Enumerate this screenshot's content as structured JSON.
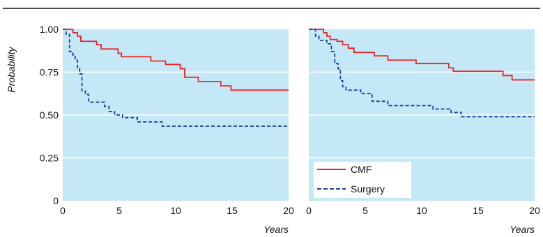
{
  "chart_data": [
    {
      "type": "line",
      "step": true,
      "ylabel": "Probability",
      "xlabel": "Years",
      "xlim": [
        0,
        20
      ],
      "ylim": [
        0,
        1
      ],
      "x_ticks": [
        0,
        5,
        10,
        15,
        20
      ],
      "y_ticks": [
        0,
        0.25,
        0.5,
        0.75,
        1
      ],
      "y_tick_labels": [
        "0",
        "0.25",
        "0.50",
        "0.75",
        "1.00"
      ],
      "x_tick_labels": [
        "0",
        "5",
        "10",
        "15",
        "20"
      ],
      "grid": "horizontal",
      "background": "#c5e8f6",
      "series": [
        {
          "name": "CMF",
          "color": "#e8262b",
          "style": "solid",
          "points": [
            [
              0,
              1.0
            ],
            [
              0.9,
              0.98
            ],
            [
              1.3,
              0.96
            ],
            [
              1.6,
              0.93
            ],
            [
              3.0,
              0.91
            ],
            [
              3.4,
              0.885
            ],
            [
              4.9,
              0.86
            ],
            [
              5.2,
              0.84
            ],
            [
              7.8,
              0.815
            ],
            [
              9.1,
              0.795
            ],
            [
              10.4,
              0.77
            ],
            [
              10.8,
              0.72
            ],
            [
              12.0,
              0.695
            ],
            [
              14.0,
              0.67
            ],
            [
              14.9,
              0.645
            ],
            [
              20,
              0.645
            ]
          ]
        },
        {
          "name": "Surgery",
          "color": "#1f3f97",
          "style": "dashed",
          "points": [
            [
              0,
              1.0
            ],
            [
              0.3,
              0.97
            ],
            [
              0.6,
              0.87
            ],
            [
              0.9,
              0.85
            ],
            [
              1.1,
              0.82
            ],
            [
              1.3,
              0.77
            ],
            [
              1.5,
              0.74
            ],
            [
              1.7,
              0.64
            ],
            [
              2.0,
              0.62
            ],
            [
              2.3,
              0.575
            ],
            [
              3.7,
              0.55
            ],
            [
              4.1,
              0.52
            ],
            [
              4.6,
              0.5
            ],
            [
              5.3,
              0.485
            ],
            [
              6.6,
              0.46
            ],
            [
              8.8,
              0.435
            ],
            [
              20,
              0.435
            ]
          ]
        }
      ]
    },
    {
      "type": "line",
      "step": true,
      "xlabel": "Years",
      "xlim": [
        0,
        20
      ],
      "ylim": [
        0,
        1
      ],
      "x_ticks": [
        0,
        5,
        10,
        15,
        20
      ],
      "x_tick_labels": [
        "0",
        "5",
        "10",
        "15",
        "20"
      ],
      "grid": "horizontal",
      "background": "#c5e8f6",
      "legend": "bottom-left",
      "series": [
        {
          "name": "CMF",
          "color": "#e8262b",
          "style": "solid",
          "points": [
            [
              0,
              1.0
            ],
            [
              1.3,
              0.98
            ],
            [
              1.6,
              0.96
            ],
            [
              1.9,
              0.94
            ],
            [
              2.5,
              0.93
            ],
            [
              3.0,
              0.91
            ],
            [
              3.5,
              0.89
            ],
            [
              4.0,
              0.865
            ],
            [
              5.8,
              0.845
            ],
            [
              7.0,
              0.82
            ],
            [
              9.5,
              0.8
            ],
            [
              12.4,
              0.775
            ],
            [
              12.8,
              0.755
            ],
            [
              17.2,
              0.73
            ],
            [
              18.0,
              0.705
            ],
            [
              20,
              0.705
            ]
          ]
        },
        {
          "name": "Surgery",
          "color": "#1f3f97",
          "style": "dashed",
          "points": [
            [
              0,
              1.0
            ],
            [
              0.6,
              0.96
            ],
            [
              0.9,
              0.935
            ],
            [
              1.6,
              0.915
            ],
            [
              2.0,
              0.87
            ],
            [
              2.3,
              0.8
            ],
            [
              2.6,
              0.77
            ],
            [
              2.8,
              0.7
            ],
            [
              3.0,
              0.665
            ],
            [
              3.3,
              0.645
            ],
            [
              4.6,
              0.625
            ],
            [
              5.6,
              0.58
            ],
            [
              7.0,
              0.555
            ],
            [
              11.0,
              0.535
            ],
            [
              12.6,
              0.515
            ],
            [
              13.5,
              0.49
            ],
            [
              20,
              0.49
            ]
          ]
        }
      ]
    }
  ]
}
